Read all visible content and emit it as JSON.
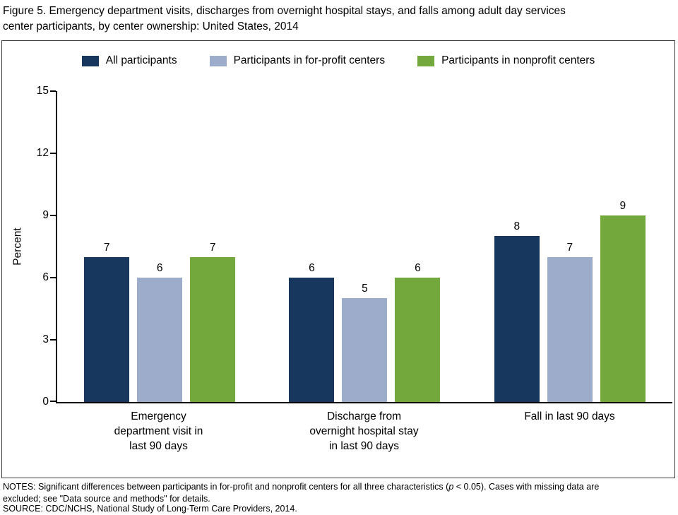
{
  "title": "Figure 5. Emergency department visits, discharges from overnight hospital stays, and falls among adult day services\ncenter participants, by center ownership: United States, 2014",
  "chart_data": {
    "type": "bar",
    "title": "Emergency department visits, discharges from overnight hospital stays, and falls among adult day services center participants, by center ownership: United States, 2014",
    "ylabel": "Percent",
    "ylim": [
      0,
      15
    ],
    "yticks": [
      0,
      3,
      6,
      9,
      12,
      15
    ],
    "grid": false,
    "legend_position": "top-center",
    "categories": [
      "Emergency\ndepartment visit in\nlast 90 days",
      "Discharge from\novernight hospital stay\nin last 90 days",
      "Fall in last 90 days"
    ],
    "series": [
      {
        "name": "All participants",
        "color": "#17375e",
        "values": [
          7,
          6,
          8
        ]
      },
      {
        "name": "Participants in for-profit centers",
        "color": "#9daccb",
        "values": [
          6,
          5,
          7
        ]
      },
      {
        "name": "Participants in nonprofit centers",
        "color": "#72a83c",
        "values": [
          7,
          6,
          9
        ]
      }
    ]
  },
  "notes": {
    "part1": "NOTES: Significant differences between participants in for-profit and nonprofit centers for all three characteristics (",
    "italic": "p",
    "part2": " < 0.05). Cases with missing data are\nexcluded; see \"Data source and methods\" for details."
  },
  "source": "SOURCE: CDC/NCHS, National Study of Long-Term Care Providers, 2014."
}
